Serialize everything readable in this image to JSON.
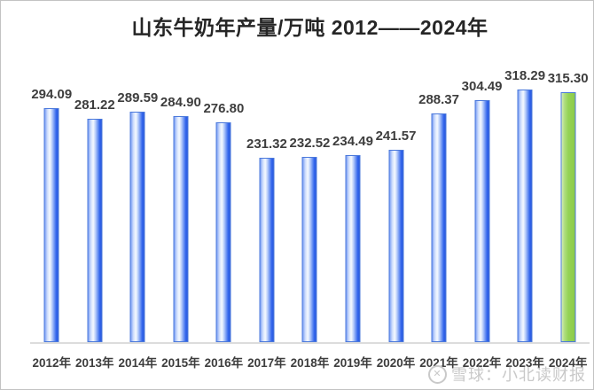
{
  "chart_data": {
    "type": "bar",
    "title": "山东牛奶年产量/万吨 2012——2024年",
    "categories": [
      "2012年",
      "2013年",
      "2014年",
      "2015年",
      "2016年",
      "2017年",
      "2018年",
      "2019年",
      "2020年",
      "2021年",
      "2022年",
      "2023年",
      "2024年"
    ],
    "values": [
      294.09,
      281.22,
      289.59,
      284.9,
      276.8,
      231.32,
      232.52,
      234.49,
      241.57,
      288.37,
      304.49,
      318.29,
      315.3
    ],
    "value_labels": [
      "294.09",
      "281.22",
      "289.59",
      "284.90",
      "276.80",
      "231.32",
      "232.52",
      "234.49",
      "241.57",
      "288.37",
      "304.49",
      "318.29",
      "315.30"
    ],
    "xlabel": "",
    "ylabel": "",
    "ylim": [
      0,
      370
    ],
    "grid": false,
    "legend": false,
    "highlight_last_bar": true,
    "colors": {
      "bar_border": "#4b79db",
      "bar_blue_deep": "#2a59de",
      "bar_blue_highlight": "#f5f9ff",
      "bar_green": "#92d050",
      "bar_green_light": "#d4ecb4",
      "baseline": "#dcdcdc",
      "label_text": "#3d3d3d",
      "title_text": "#262626",
      "frame_border": "#c3c3c3",
      "background": "#ffffff",
      "watermark": "#c9c9c9"
    }
  },
  "watermark": {
    "logo": "xueqiu-circle-logo",
    "text": "雪球：小北读财报"
  }
}
